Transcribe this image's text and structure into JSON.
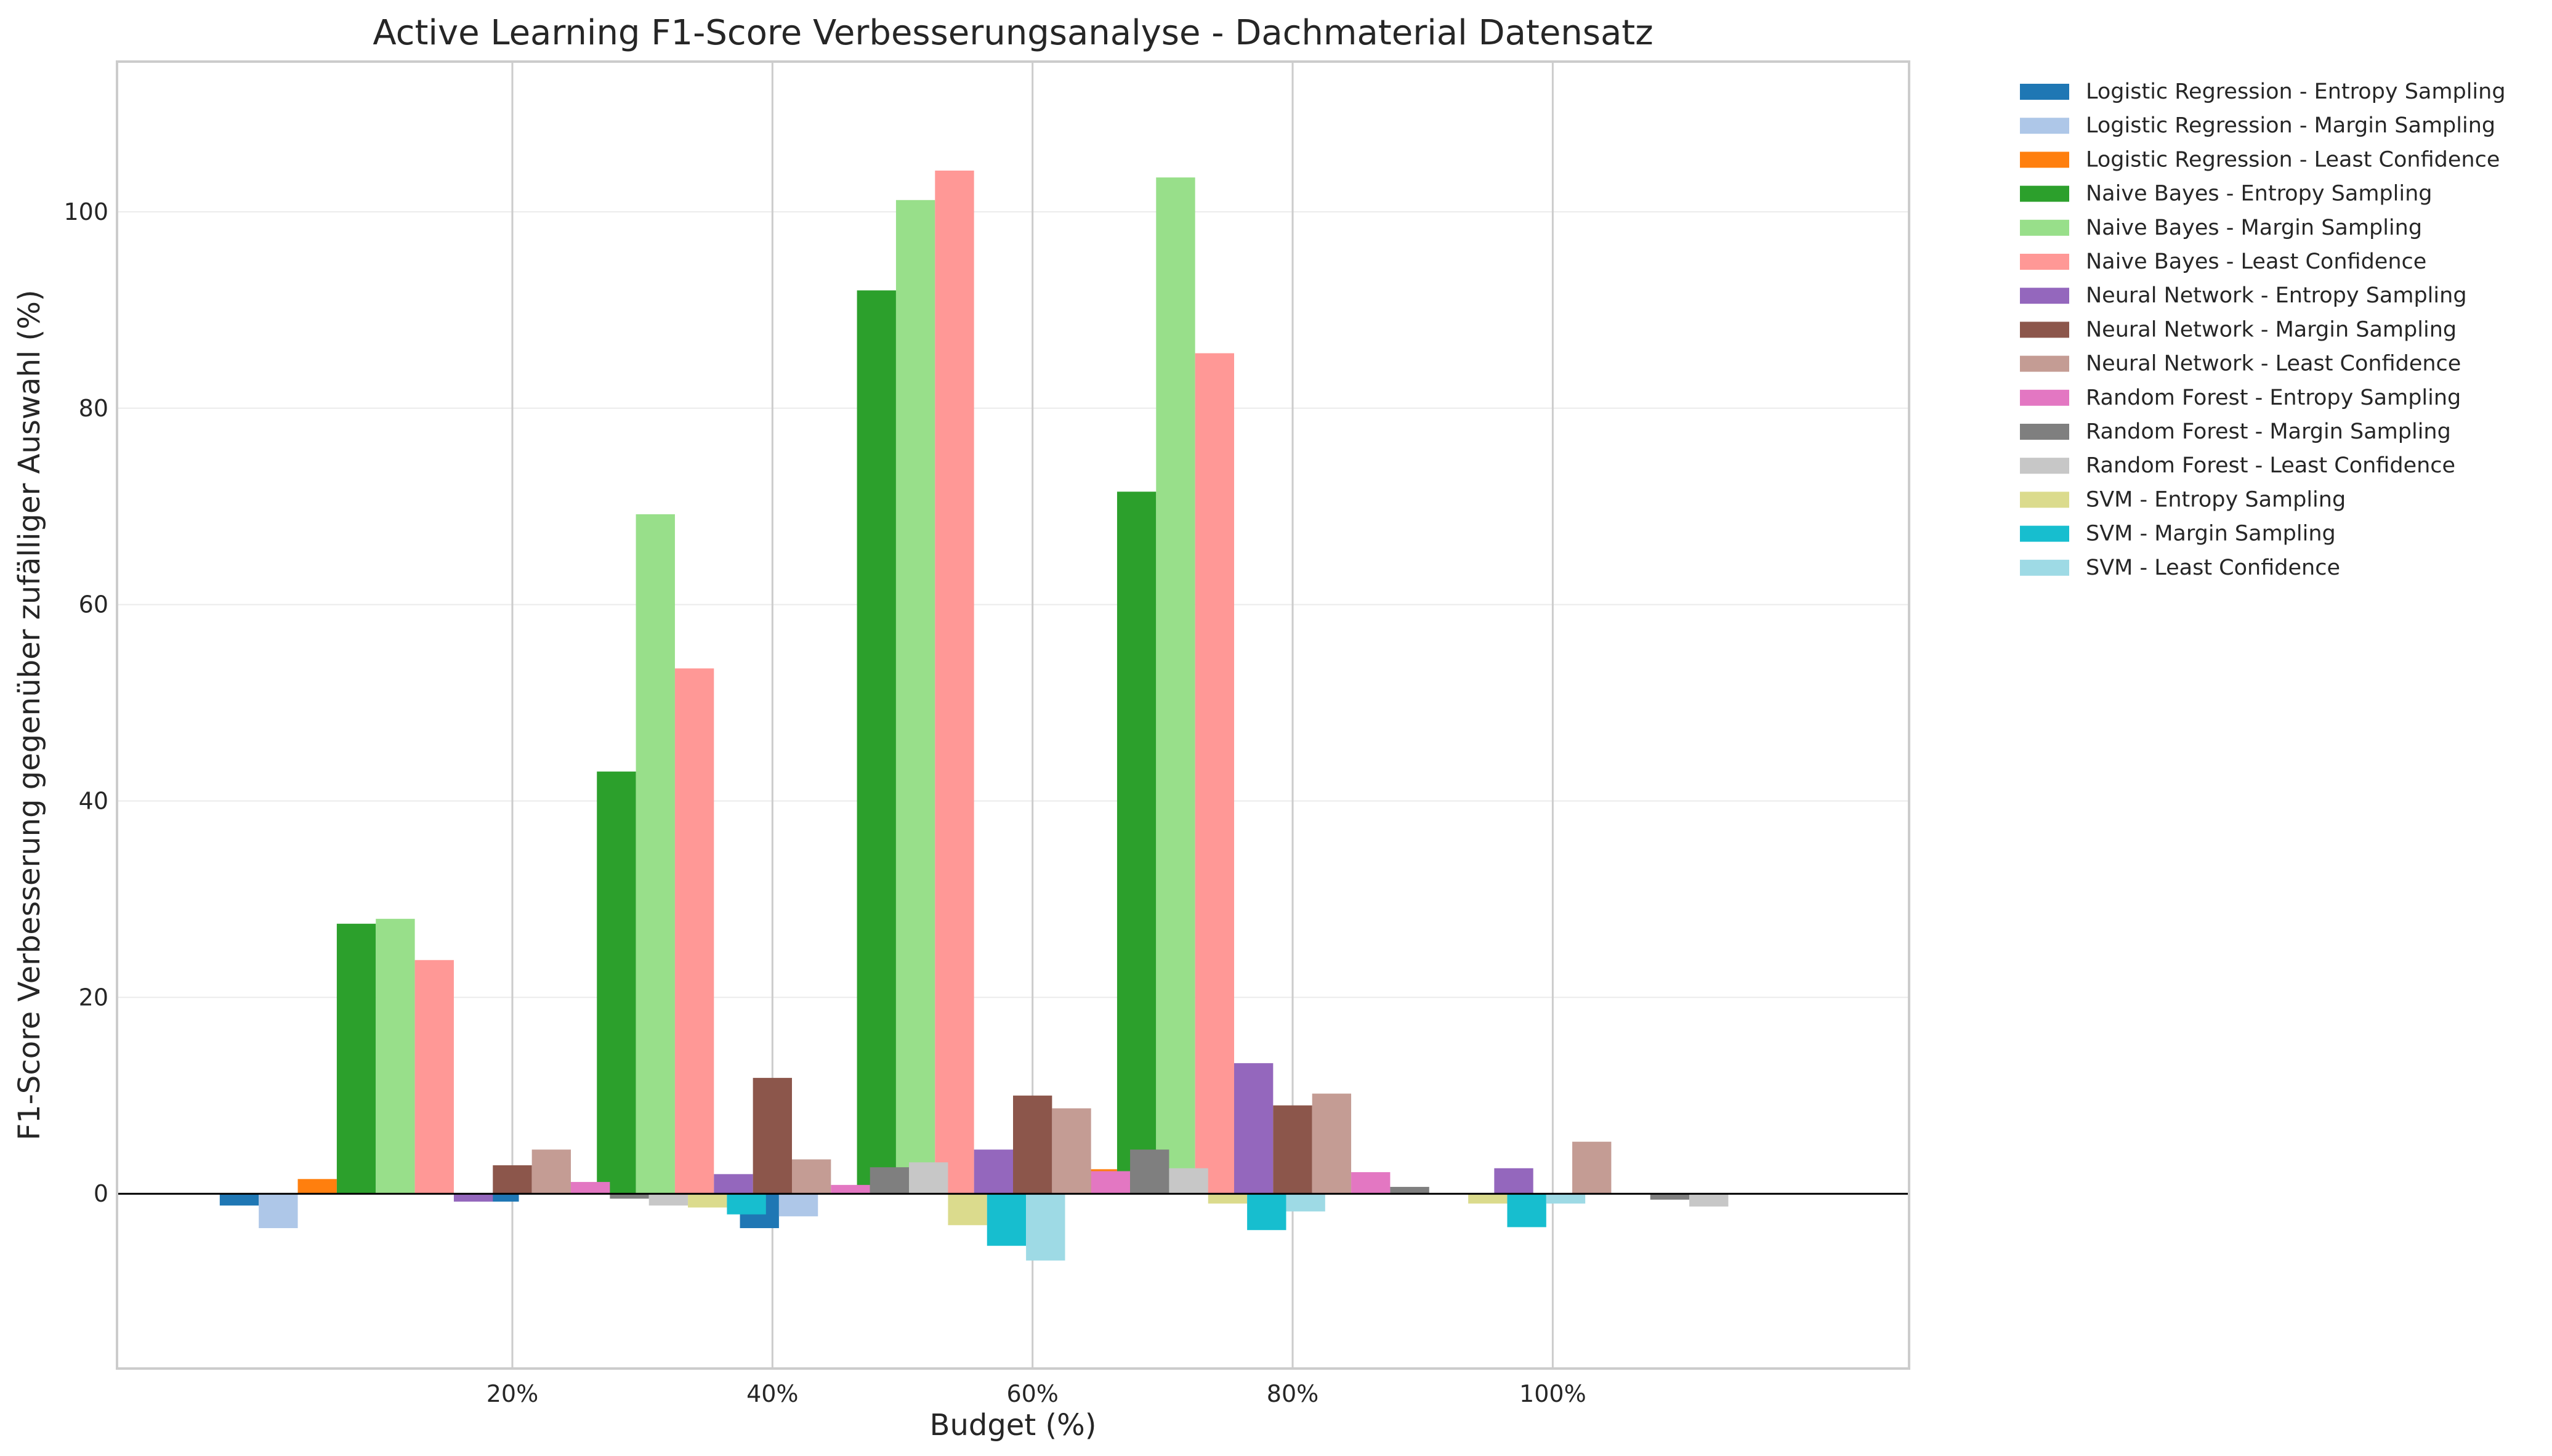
{
  "chart_data": {
    "type": "bar",
    "title": "Active Learning F1-Score Verbesserungsanalyse - Dachmaterial Datensatz",
    "xlabel": "Budget (%)",
    "ylabel": "F1-Score Verbesserung gegenüber zufälliger Auswahl (%)",
    "categories": [
      "20%",
      "40%",
      "60%",
      "80%",
      "100%"
    ],
    "xlim": [
      -1.52,
      5.37
    ],
    "ylim": [
      -17.8,
      115.3
    ],
    "yticks": [
      0,
      20,
      40,
      60,
      80,
      100
    ],
    "grid": true,
    "legend_position": "outside-top-right",
    "series": [
      {
        "name": "Logistic Regression - Entropy Sampling",
        "color": "#1f77b4",
        "values": [
          -1.2,
          -0.8,
          -3.5,
          0,
          0
        ]
      },
      {
        "name": "Logistic Regression - Margin Sampling",
        "color": "#aec7e8",
        "values": [
          -3.5,
          0,
          -2.3,
          0,
          0
        ]
      },
      {
        "name": "Logistic Regression - Least Confidence",
        "color": "#ff7f0e",
        "values": [
          1.5,
          0,
          0,
          2.5,
          0
        ]
      },
      {
        "name": "Naive Bayes - Entropy Sampling",
        "color": "#2ca02c",
        "values": [
          27.5,
          43.0,
          92.0,
          71.5,
          0
        ]
      },
      {
        "name": "Naive Bayes - Margin Sampling",
        "color": "#98df8a",
        "values": [
          28.0,
          69.2,
          101.2,
          103.5,
          0
        ]
      },
      {
        "name": "Naive Bayes - Least Confidence",
        "color": "#ff9896",
        "values": [
          23.8,
          53.5,
          104.2,
          85.6,
          0
        ]
      },
      {
        "name": "Neural Network - Entropy Sampling",
        "color": "#9467bd",
        "values": [
          -0.8,
          2.0,
          4.5,
          13.3,
          2.6
        ]
      },
      {
        "name": "Neural Network - Margin Sampling",
        "color": "#8c564b",
        "values": [
          2.9,
          11.8,
          10.0,
          9.0,
          0
        ]
      },
      {
        "name": "Neural Network - Least Confidence",
        "color": "#c49c94",
        "values": [
          4.5,
          3.5,
          8.7,
          10.2,
          5.3
        ]
      },
      {
        "name": "Random Forest - Entropy Sampling",
        "color": "#e377c2",
        "values": [
          1.2,
          0.9,
          2.3,
          2.2,
          0
        ]
      },
      {
        "name": "Random Forest - Margin Sampling",
        "color": "#7f7f7f",
        "values": [
          -0.5,
          2.7,
          4.5,
          0.7,
          -0.6
        ]
      },
      {
        "name": "Random Forest - Least Confidence",
        "color": "#c7c7c7",
        "values": [
          -1.2,
          3.2,
          2.6,
          0,
          -1.3
        ]
      },
      {
        "name": "SVM - Entropy Sampling",
        "color": "#dbdb8d",
        "values": [
          -1.4,
          -3.2,
          -1.0,
          -1.0,
          0
        ]
      },
      {
        "name": "SVM - Margin Sampling",
        "color": "#17becf",
        "values": [
          -2.1,
          -5.3,
          -3.7,
          -3.4,
          0
        ]
      },
      {
        "name": "SVM - Least Confidence",
        "color": "#9edae5",
        "values": [
          0,
          -6.8,
          -1.8,
          -1.0,
          0
        ]
      }
    ]
  }
}
